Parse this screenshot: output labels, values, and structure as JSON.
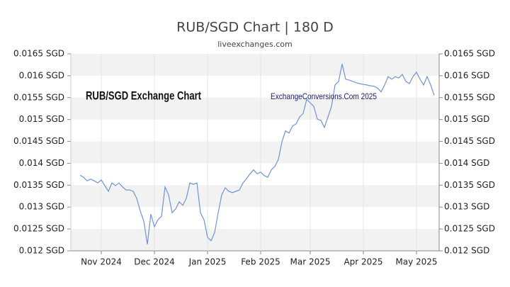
{
  "chart_data": {
    "type": "line",
    "title": "RUB/SGD Chart | 180 D",
    "subtitle": "liveexchanges.com",
    "annotations": [
      "RUB/SGD Exchange Chart",
      "ExchangeConversions.Com 2025"
    ],
    "categories": [
      null,
      null,
      null,
      null,
      null,
      null,
      "Nov 2024",
      null,
      null,
      null,
      null,
      null,
      null,
      null,
      null,
      null,
      null,
      null,
      null,
      null,
      null,
      "Dec 2024",
      null,
      null,
      null,
      null,
      null,
      null,
      null,
      null,
      null,
      null,
      null,
      null,
      null,
      null,
      "Jan 2025",
      null,
      null,
      null,
      null,
      null,
      null,
      null,
      null,
      null,
      null,
      null,
      null,
      null,
      null,
      "Feb 2025",
      null,
      null,
      null,
      null,
      null,
      null,
      null,
      null,
      null,
      null,
      null,
      null,
      null,
      "Mar 2025",
      null,
      null,
      null,
      null,
      null,
      null,
      null,
      null,
      null,
      null,
      null,
      null,
      null,
      null,
      "Apr 2025",
      null,
      null,
      null,
      null,
      null,
      null,
      null,
      null,
      null,
      null,
      null,
      null,
      null,
      null,
      "May 2025",
      null,
      null,
      null,
      null,
      null
    ],
    "series": [
      {
        "color": "#6f93d8",
        "values": [
          0.01373,
          0.01368,
          0.0136,
          0.01364,
          0.0136,
          0.01355,
          0.01362,
          0.01349,
          0.01336,
          0.01355,
          0.01349,
          0.01355,
          0.01346,
          0.01339,
          0.01339,
          0.01336,
          0.0132,
          0.01291,
          0.01268,
          0.01215,
          0.01284,
          0.01255,
          0.01271,
          0.01279,
          0.01346,
          0.01328,
          0.01287,
          0.01296,
          0.01312,
          0.01304,
          0.0132,
          0.01355,
          0.01352,
          0.01355,
          0.01287,
          0.01271,
          0.01231,
          0.01223,
          0.01242,
          0.01287,
          0.01328,
          0.01344,
          0.01336,
          0.01333,
          0.01336,
          0.01339,
          0.01355,
          0.01365,
          0.01376,
          0.01385,
          0.01376,
          0.0138,
          0.01372,
          0.01368,
          0.01385,
          0.01393,
          0.01409,
          0.01449,
          0.01474,
          0.01469,
          0.01485,
          0.0149,
          0.01506,
          0.01514,
          0.01546,
          0.01538,
          0.0153,
          0.01501,
          0.01498,
          0.01482,
          0.01506,
          0.0153,
          0.01579,
          0.01587,
          0.01627,
          0.01592,
          0.0159,
          0.01587,
          0.01584,
          0.01582,
          0.0158,
          0.01579,
          0.01577,
          0.01576,
          0.01572,
          0.01563,
          0.01579,
          0.01598,
          0.01592,
          0.01598,
          0.01595,
          0.01603,
          0.01587,
          0.01582,
          0.01598,
          0.01608,
          0.01592,
          0.01579,
          0.01598,
          0.01579,
          0.01555
        ]
      }
    ],
    "ylim": [
      0.012,
      0.0165
    ],
    "yticks": [
      {
        "value": 0.012,
        "label": "0.012 SGD"
      },
      {
        "value": 0.0125,
        "label": "0.0125 SGD"
      },
      {
        "value": 0.013,
        "label": "0.013 SGD"
      },
      {
        "value": 0.0135,
        "label": "0.0135 SGD"
      },
      {
        "value": 0.014,
        "label": "0.014 SGD"
      },
      {
        "value": 0.0145,
        "label": "0.0145 SGD"
      },
      {
        "value": 0.015,
        "label": "0.015 SGD"
      },
      {
        "value": 0.0155,
        "label": "0.0155 SGD"
      },
      {
        "value": 0.016,
        "label": "0.016 SGD"
      },
      {
        "value": 0.0165,
        "label": "0.0165 SGD"
      }
    ],
    "bands": true
  }
}
